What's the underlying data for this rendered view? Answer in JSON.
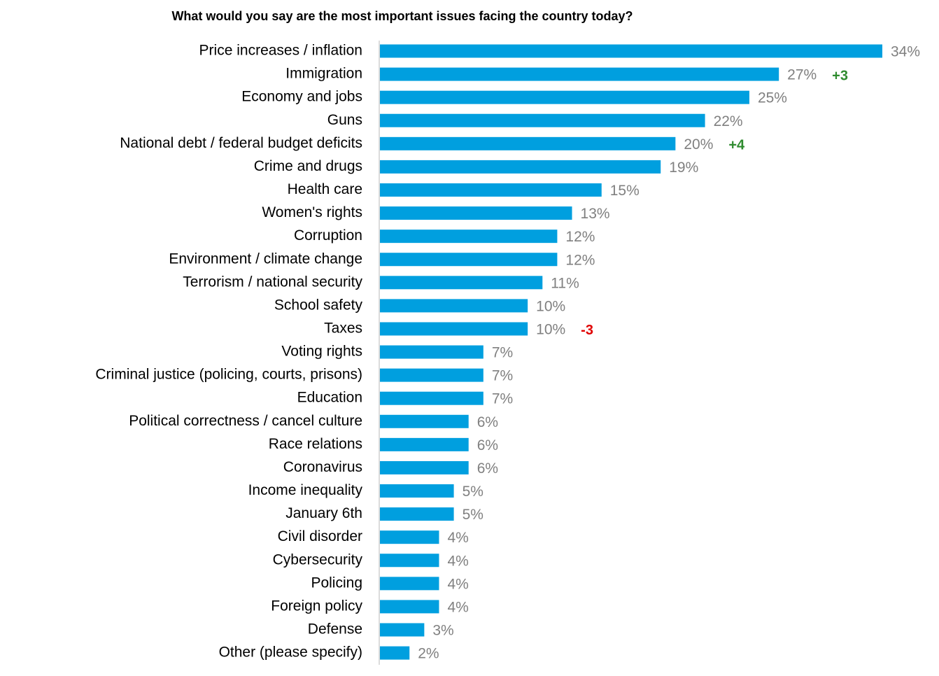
{
  "chart_data": {
    "type": "bar",
    "orientation": "horizontal",
    "title": "What would you say are the most important issues facing the country today?",
    "categories": [
      "Price increases / inflation",
      "Immigration",
      "Economy and jobs",
      "Guns",
      "National debt / federal budget deficits",
      "Crime and drugs",
      "Health care",
      "Women's rights",
      "Corruption",
      "Environment / climate change",
      "Terrorism / national security",
      "School safety",
      "Taxes",
      "Voting rights",
      "Criminal justice (policing, courts, prisons)",
      "Education",
      "Political correctness / cancel culture",
      "Race relations",
      "Coronavirus",
      "Income inequality",
      "January 6th",
      "Civil disorder",
      "Cybersecurity",
      "Policing",
      "Foreign policy",
      "Defense",
      "Other (please specify)"
    ],
    "values": [
      34,
      27,
      25,
      22,
      20,
      19,
      15,
      13,
      12,
      12,
      11,
      10,
      10,
      7,
      7,
      7,
      6,
      6,
      6,
      5,
      5,
      4,
      4,
      4,
      4,
      3,
      2
    ],
    "value_labels": [
      "34%",
      "27%",
      "25%",
      "22%",
      "20%",
      "19%",
      "15%",
      "13%",
      "12%",
      "12%",
      "11%",
      "10%",
      "10%",
      "7%",
      "7%",
      "7%",
      "6%",
      "6%",
      "6%",
      "5%",
      "5%",
      "4%",
      "4%",
      "4%",
      "4%",
      "3%",
      "2%"
    ],
    "changes": [
      null,
      3,
      null,
      null,
      4,
      null,
      null,
      null,
      null,
      null,
      null,
      null,
      -3,
      null,
      null,
      null,
      null,
      null,
      null,
      null,
      null,
      null,
      null,
      null,
      null,
      null,
      null
    ],
    "change_labels": [
      null,
      "+3",
      null,
      null,
      "+4",
      null,
      null,
      null,
      null,
      null,
      null,
      null,
      "-3",
      null,
      null,
      null,
      null,
      null,
      null,
      null,
      null,
      null,
      null,
      null,
      null,
      null,
      null
    ],
    "color": "#009fdf",
    "value_label_color": "#808080",
    "change_colors": {
      "up": "#2e8b2e",
      "down": "#e00000"
    }
  }
}
